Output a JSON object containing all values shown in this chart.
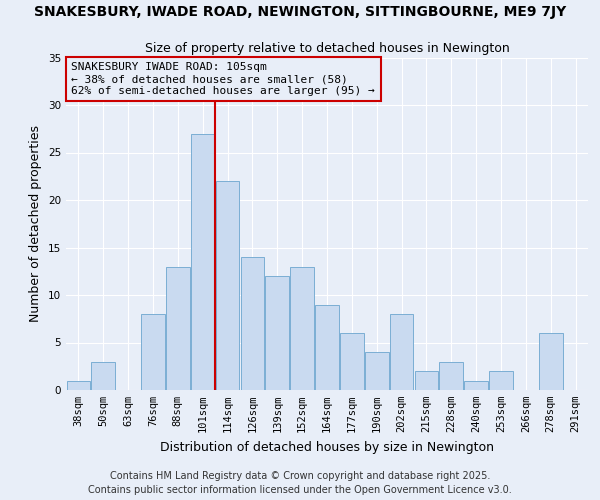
{
  "title": "SNAKESBURY, IWADE ROAD, NEWINGTON, SITTINGBOURNE, ME9 7JY",
  "subtitle": "Size of property relative to detached houses in Newington",
  "xlabel": "Distribution of detached houses by size in Newington",
  "ylabel": "Number of detached properties",
  "bin_labels": [
    "38sqm",
    "50sqm",
    "63sqm",
    "76sqm",
    "88sqm",
    "101sqm",
    "114sqm",
    "126sqm",
    "139sqm",
    "152sqm",
    "164sqm",
    "177sqm",
    "190sqm",
    "202sqm",
    "215sqm",
    "228sqm",
    "240sqm",
    "253sqm",
    "266sqm",
    "278sqm",
    "291sqm"
  ],
  "values": [
    1,
    3,
    0,
    8,
    13,
    27,
    22,
    14,
    12,
    13,
    9,
    6,
    4,
    8,
    2,
    3,
    1,
    2,
    0,
    6,
    0
  ],
  "bar_color": "#c9daf0",
  "bar_edge_color": "#7baed4",
  "vline_color": "#cc0000",
  "ylim": [
    0,
    35
  ],
  "yticks": [
    0,
    5,
    10,
    15,
    20,
    25,
    30,
    35
  ],
  "annotation_title": "SNAKESBURY IWADE ROAD: 105sqm",
  "annotation_line1": "← 38% of detached houses are smaller (58)",
  "annotation_line2": "62% of semi-detached houses are larger (95) →",
  "annotation_box_color": "#cc0000",
  "footer1": "Contains HM Land Registry data © Crown copyright and database right 2025.",
  "footer2": "Contains public sector information licensed under the Open Government Licence v3.0.",
  "background_color": "#e8eef8",
  "grid_color": "#ffffff",
  "title_fontsize": 10,
  "subtitle_fontsize": 9,
  "axis_label_fontsize": 9,
  "tick_fontsize": 7.5,
  "annotation_fontsize": 8,
  "footer_fontsize": 7
}
